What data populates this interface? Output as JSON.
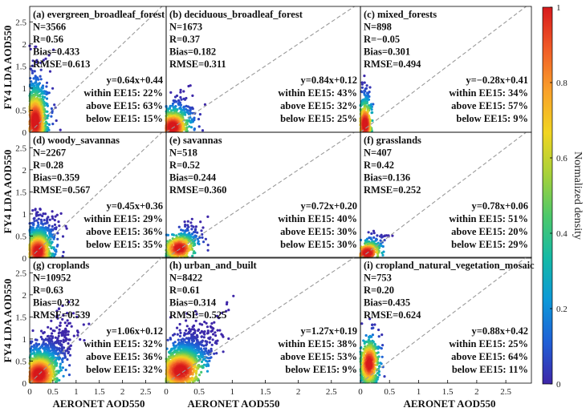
{
  "figure": {
    "x_label": "AERONET AOD550",
    "y_label": "FY4 LDA AOD550",
    "colorbar_label": "Normalized density"
  },
  "colors": {
    "one_to_one": "#9a9a9a",
    "frame": "#000000",
    "colormap": [
      "#3e26a8",
      "#1f5fd6",
      "#0d98d8",
      "#14b9a6",
      "#4cc86b",
      "#a6d13a",
      "#f1d521",
      "#f9a12a",
      "#f05c27",
      "#d7191c"
    ]
  },
  "chart_data": [
    {
      "type": "scatter",
      "title": "(a) evergreen_broadleaf_forest",
      "N": "N=3566",
      "R": "R=0.56",
      "Bias": "Bias=0.433",
      "RMSE": "RMSE=0.613",
      "fit": "y=0.64x+0.44",
      "within": "within EE15: 22%",
      "above": "above EE15: 63%",
      "below": "below EE15: 15%",
      "slope": 0.64,
      "intercept": 0.44,
      "core": [
        0.12,
        0.25
      ],
      "spread": [
        0.35,
        1.2
      ],
      "n_points": 1100,
      "xlim": [
        0,
        3
      ],
      "ylim": [
        0,
        3
      ]
    },
    {
      "type": "scatter",
      "title": "(b) deciduous_broadleaf_forest",
      "N": "N=1673",
      "R": "R=0.37",
      "Bias": "Bias=0.182",
      "RMSE": "RMSE=0.311",
      "fit": "y=0.84x+0.12",
      "within": "within EE15: 43%",
      "above": "above EE15: 32%",
      "below": "below EE15: 25%",
      "slope": 0.84,
      "intercept": 0.12,
      "core": [
        0.1,
        0.12
      ],
      "spread": [
        0.35,
        0.6
      ],
      "n_points": 850,
      "xlim": [
        0,
        3
      ],
      "ylim": [
        0,
        3
      ]
    },
    {
      "type": "scatter",
      "title": "(c) mixed_forests",
      "N": "N=898",
      "R": "R=−0.05",
      "Bias": "Bias=0.301",
      "RMSE": "RMSE=0.494",
      "fit": "y=−0.28x+0.41",
      "within": "within EE15: 34%",
      "above": "above EE15: 57%",
      "below": "below EE15: 9%",
      "slope": -0.28,
      "intercept": 0.41,
      "core": [
        0.08,
        0.18
      ],
      "spread": [
        0.12,
        0.85
      ],
      "n_points": 550,
      "xlim": [
        0,
        3
      ],
      "ylim": [
        0,
        3
      ]
    },
    {
      "type": "scatter",
      "title": "(d) woody_savannas",
      "N": "N=2267",
      "R": "R=0.28",
      "Bias": "Bias=0.359",
      "RMSE": "RMSE=0.567",
      "fit": "y=0.45x+0.36",
      "within": "within EE15: 29%",
      "above": "above EE15: 36%",
      "below": "below EE15: 35%",
      "slope": 0.45,
      "intercept": 0.36,
      "core": [
        0.18,
        0.15
      ],
      "spread": [
        0.45,
        0.7
      ],
      "n_points": 1000,
      "xlim": [
        0,
        3
      ],
      "ylim": [
        0,
        3
      ]
    },
    {
      "type": "scatter",
      "title": "(e) savannas",
      "N": "N=518",
      "R": "R=0.52",
      "Bias": "Bias=0.244",
      "RMSE": "RMSE=0.360",
      "fit": "y=0.72x+0.20",
      "within": "within EE15: 40%",
      "above": "above EE15: 30%",
      "below": "below EE15: 30%",
      "slope": 0.72,
      "intercept": 0.2,
      "core": [
        0.2,
        0.22
      ],
      "spread": [
        0.35,
        0.45
      ],
      "n_points": 500,
      "xlim": [
        0,
        3
      ],
      "ylim": [
        0,
        3
      ]
    },
    {
      "type": "scatter",
      "title": "(f) grasslands",
      "N": "N=407",
      "R": "R=0.42",
      "Bias": "Bias=0.136",
      "RMSE": "RMSE=0.252",
      "fit": "y=0.78x+0.06",
      "within": "within EE15: 51%",
      "above": "above EE15: 20%",
      "below": "below EE15: 29%",
      "slope": 0.78,
      "intercept": 0.06,
      "core": [
        0.12,
        0.12
      ],
      "spread": [
        0.35,
        0.35
      ],
      "n_points": 380,
      "xlim": [
        0,
        3
      ],
      "ylim": [
        0,
        3
      ]
    },
    {
      "type": "scatter",
      "title": "(g) croplands",
      "N": "N=10952",
      "R": "R=0.63",
      "Bias": "Bias=0.332",
      "RMSE": "RMSE=0.539",
      "fit": "y=1.06x+0.12",
      "within": "within EE15: 32%",
      "above": "above EE15: 36%",
      "below": "below EE15: 32%",
      "slope": 1.06,
      "intercept": 0.12,
      "core": [
        0.2,
        0.2
      ],
      "spread": [
        0.7,
        0.75
      ],
      "n_points": 1800,
      "xlim": [
        0,
        3
      ],
      "ylim": [
        0,
        3
      ]
    },
    {
      "type": "scatter",
      "title": "(h) urban_and_built",
      "N": "N=8422",
      "R": "R=0.61",
      "Bias": "Bias=0.314",
      "RMSE": "RMSE=0.525",
      "fit": "y=1.27x+0.19",
      "within": "within EE15: 38%",
      "above": "above EE15: 53%",
      "below": "below EE15: 9%",
      "slope": 1.27,
      "intercept": 0.19,
      "core": [
        0.22,
        0.28
      ],
      "spread": [
        0.55,
        0.75
      ],
      "n_points": 1600,
      "xlim": [
        0,
        3
      ],
      "ylim": [
        0,
        3
      ]
    },
    {
      "type": "scatter",
      "title": "(i) cropland_natural_vegetation_mosaic",
      "N": "N=753",
      "R": "R=0.20",
      "Bias": "Bias=0.435",
      "RMSE": "RMSE=0.624",
      "fit": "y=0.88x+0.42",
      "within": "within EE15: 25%",
      "above": "above EE15: 64%",
      "below": "below EE15: 11%",
      "slope": 0.88,
      "intercept": 0.42,
      "core": [
        0.15,
        0.45
      ],
      "spread": [
        0.2,
        0.85
      ],
      "n_points": 600,
      "xlim": [
        0,
        3
      ],
      "ylim": [
        0,
        3
      ]
    }
  ],
  "axes": {
    "x_ticks": [
      "0",
      "0.5",
      "1",
      "1.5",
      "2",
      "2.5"
    ],
    "x_tick_values": [
      0,
      0.5,
      1,
      1.5,
      2,
      2.5
    ],
    "y_ticks": [
      "0",
      "0.5",
      "1",
      "1.5",
      "2",
      "2.5"
    ],
    "y_tick_values": [
      0,
      0.5,
      1,
      1.5,
      2,
      2.5
    ]
  },
  "colorbar": {
    "ticks": [
      "0",
      "0.2",
      "0.4",
      "0.6",
      "0.8",
      "1"
    ],
    "tick_values": [
      0,
      0.2,
      0.4,
      0.6,
      0.8,
      1
    ]
  }
}
